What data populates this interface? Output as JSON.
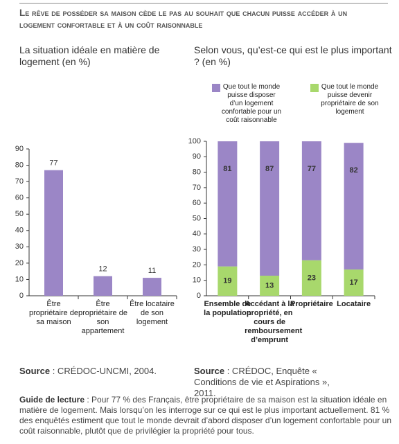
{
  "heading": "Le rêve de posséder sa maison cède le pas au souhait que chacun puisse accéder à un logement confortable et à un coût raisonnable",
  "reading_guide_label": "Guide de lecture",
  "reading_guide": ": Pour 77 % des Français, être propriétaire de sa maison est la situation idéale en matière de logement. Mais lorsqu’on les interroge sur ce qui est le plus important actuellement. 81 % des enquêtés estiment que tout le monde devrait d’abord disposer d’un logement confortable pour un coût raisonnable, plutôt que de privilégier la propriété pour tous.",
  "chart_data": [
    {
      "type": "bar",
      "title": "La situation idéale en matière de logement (en %)",
      "categories": [
        "Être propriétaire de sa maison",
        "Être propriétaire de son appartement",
        "Être locataire de son logement"
      ],
      "values": [
        77,
        12,
        11
      ],
      "color": "#9b86c6",
      "ylim": [
        0,
        90
      ],
      "yticks": [
        0,
        10,
        20,
        30,
        40,
        50,
        60,
        70,
        80,
        90
      ],
      "source_label": "Source",
      "source": ": CRÉDOC-UNCMI, 2004."
    },
    {
      "type": "stacked_bar",
      "title": "Selon vous, qu’est-ce qui est le plus important ? (en %)",
      "categories": [
        "Ensemble de la population",
        "Accédant à la propriété, en cours de remboursement d’emprunt",
        "Propriétaire",
        "Locataire"
      ],
      "series": [
        {
          "name": "Que tout le monde puisse disposer d’un logement confortable pour un coût raisonnable",
          "color": "#9b86c6",
          "values": [
            81,
            87,
            77,
            82
          ]
        },
        {
          "name": "Que tout le monde puisse devenir propriétaire de son logement",
          "color": "#a8d86c",
          "values": [
            19,
            13,
            23,
            17
          ]
        }
      ],
      "ylim": [
        0,
        100
      ],
      "yticks": [
        0,
        10,
        20,
        30,
        40,
        50,
        60,
        70,
        80,
        90,
        100
      ],
      "source_label": "Source",
      "source": ": CRÉDOC, Enquête « Conditions de vie et Aspirations », 2011."
    }
  ]
}
